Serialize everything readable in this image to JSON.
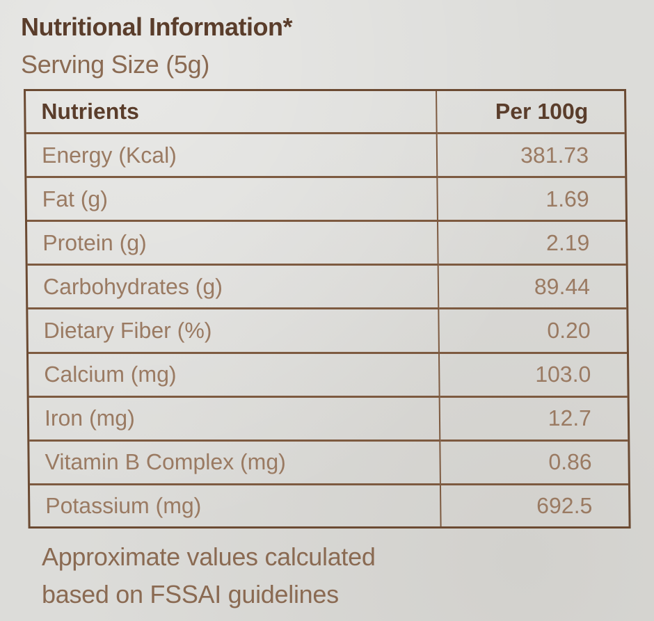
{
  "label": {
    "title": "Nutritional Information*",
    "serving_size": "Serving Size (5g)",
    "columns": {
      "nutrient": "Nutrients",
      "value": "Per 100g"
    },
    "rows": [
      {
        "name": "Energy (Kcal)",
        "value": "381.73"
      },
      {
        "name": "Fat (g)",
        "value": "1.69"
      },
      {
        "name": "Protein (g)",
        "value": "2.19"
      },
      {
        "name": "Carbohydrates (g)",
        "value": "89.44"
      },
      {
        "name": "Dietary Fiber (%)",
        "value": "0.20"
      },
      {
        "name": "Calcium (mg)",
        "value": "103.0"
      },
      {
        "name": "Iron (mg)",
        "value": "12.7"
      },
      {
        "name": "Vitamin B Complex (mg)",
        "value": "0.86"
      },
      {
        "name": "Potassium (mg)",
        "value": "692.5"
      }
    ],
    "footnote_line1": "Approximate values calculated",
    "footnote_line2": "based on FSSAI guidelines"
  }
}
